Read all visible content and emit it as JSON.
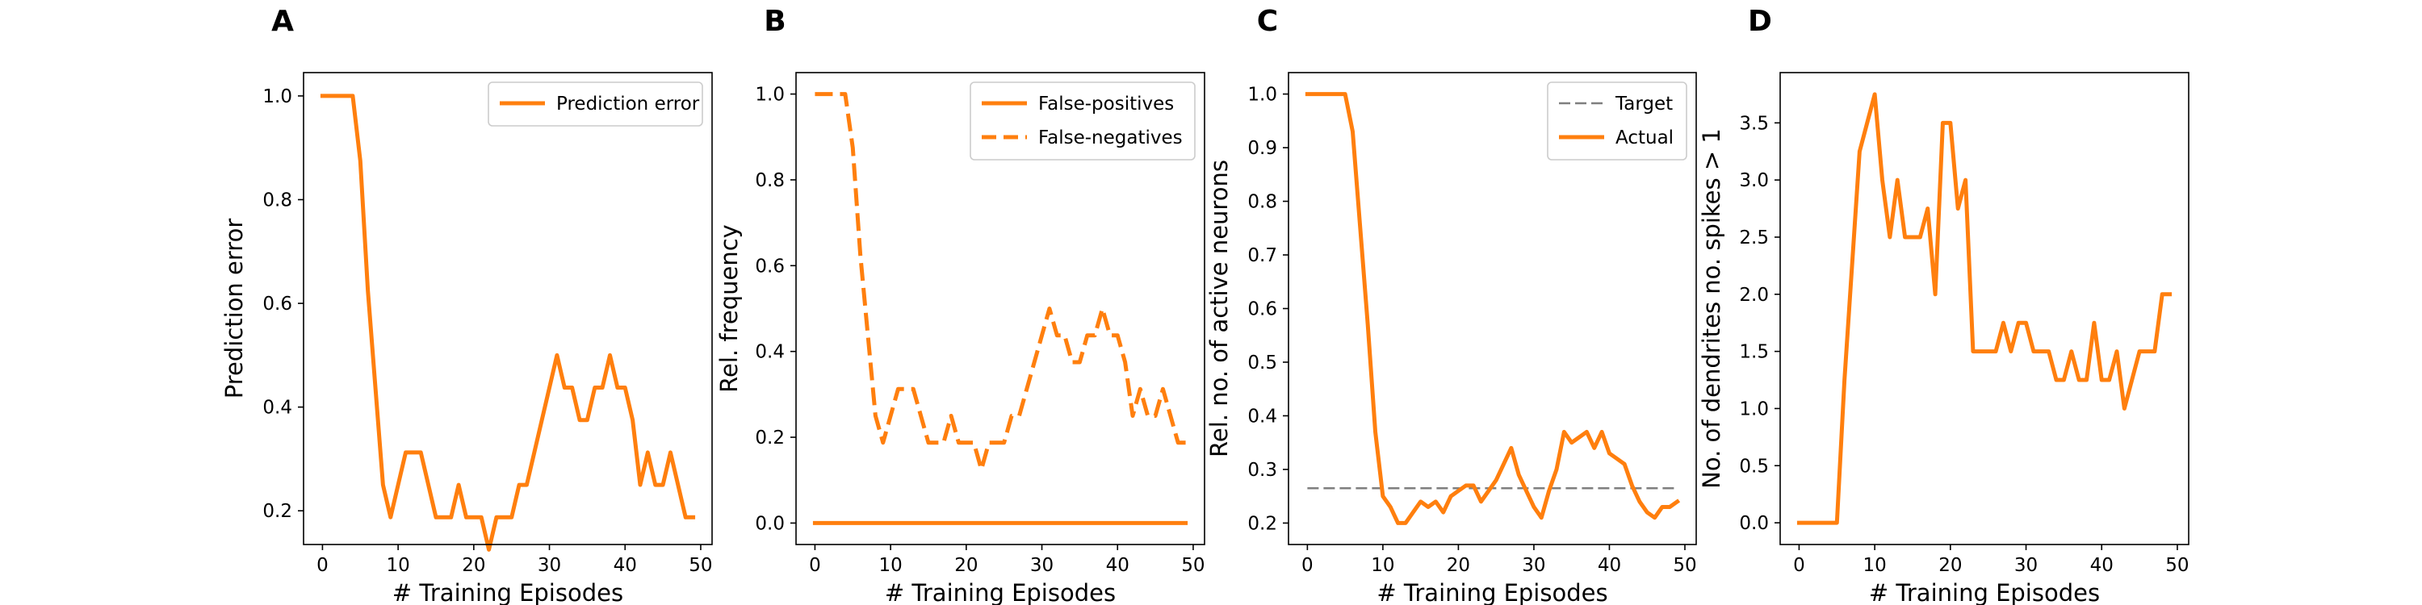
{
  "chart_data": [
    {
      "type": "line",
      "panel_label": "A",
      "xlabel": "# Training Episodes",
      "ylabel": "Prediction error",
      "xlim": [
        -2.5,
        51.5
      ],
      "ylim": [
        0.135,
        1.045
      ],
      "xticks": [
        0,
        10,
        20,
        30,
        40,
        50
      ],
      "yticks": [
        0.2,
        0.4,
        0.6,
        0.8,
        1.0
      ],
      "ytick_format": 1,
      "legend_position": "top-right",
      "grid": false,
      "series": [
        {
          "name": "Prediction error",
          "color": "#ff7f0e",
          "dash": "solid",
          "in_legend": true,
          "x": [
            0,
            1,
            2,
            3,
            4,
            5,
            6,
            7,
            8,
            9,
            10,
            11,
            12,
            13,
            14,
            15,
            16,
            17,
            18,
            19,
            20,
            21,
            22,
            23,
            24,
            25,
            26,
            27,
            28,
            29,
            30,
            31,
            32,
            33,
            34,
            35,
            36,
            37,
            38,
            39,
            40,
            41,
            42,
            43,
            44,
            45,
            46,
            47,
            48,
            49
          ],
          "y": [
            1.0,
            1.0,
            1.0,
            1.0,
            1.0,
            0.875,
            0.625,
            0.4375,
            0.25,
            0.1875,
            0.25,
            0.3125,
            0.3125,
            0.3125,
            0.25,
            0.1875,
            0.1875,
            0.1875,
            0.25,
            0.1875,
            0.1875,
            0.1875,
            0.125,
            0.1875,
            0.1875,
            0.1875,
            0.25,
            0.25,
            0.3125,
            0.375,
            0.4375,
            0.5,
            0.4375,
            0.4375,
            0.375,
            0.375,
            0.4375,
            0.4375,
            0.5,
            0.4375,
            0.4375,
            0.375,
            0.25,
            0.3125,
            0.25,
            0.25,
            0.3125,
            0.25,
            0.1875,
            0.1875
          ]
        }
      ]
    },
    {
      "type": "line",
      "panel_label": "B",
      "xlabel": "# Training Episodes",
      "ylabel": "Rel. frequency",
      "xlim": [
        -2.5,
        51.5
      ],
      "ylim": [
        -0.05,
        1.05
      ],
      "xticks": [
        0,
        10,
        20,
        30,
        40,
        50
      ],
      "yticks": [
        0.0,
        0.2,
        0.4,
        0.6,
        0.8,
        1.0
      ],
      "ytick_format": 1,
      "legend_position": "top-right",
      "grid": false,
      "series": [
        {
          "name": "False-positives",
          "color": "#ff7f0e",
          "dash": "solid",
          "in_legend": true,
          "x": [
            0,
            1,
            2,
            3,
            4,
            5,
            6,
            7,
            8,
            9,
            10,
            11,
            12,
            13,
            14,
            15,
            16,
            17,
            18,
            19,
            20,
            21,
            22,
            23,
            24,
            25,
            26,
            27,
            28,
            29,
            30,
            31,
            32,
            33,
            34,
            35,
            36,
            37,
            38,
            39,
            40,
            41,
            42,
            43,
            44,
            45,
            46,
            47,
            48,
            49
          ],
          "y": [
            0,
            0,
            0,
            0,
            0,
            0,
            0,
            0,
            0,
            0,
            0,
            0,
            0,
            0,
            0,
            0,
            0,
            0,
            0,
            0,
            0,
            0,
            0,
            0,
            0,
            0,
            0,
            0,
            0,
            0,
            0,
            0,
            0,
            0,
            0,
            0,
            0,
            0,
            0,
            0,
            0,
            0,
            0,
            0,
            0,
            0,
            0,
            0,
            0,
            0
          ]
        },
        {
          "name": "False-negatives",
          "color": "#ff7f0e",
          "dash": "dashed",
          "in_legend": true,
          "x": [
            0,
            1,
            2,
            3,
            4,
            5,
            6,
            7,
            8,
            9,
            10,
            11,
            12,
            13,
            14,
            15,
            16,
            17,
            18,
            19,
            20,
            21,
            22,
            23,
            24,
            25,
            26,
            27,
            28,
            29,
            30,
            31,
            32,
            33,
            34,
            35,
            36,
            37,
            38,
            39,
            40,
            41,
            42,
            43,
            44,
            45,
            46,
            47,
            48,
            49
          ],
          "y": [
            1.0,
            1.0,
            1.0,
            1.0,
            1.0,
            0.875,
            0.625,
            0.4375,
            0.25,
            0.1875,
            0.25,
            0.3125,
            0.3125,
            0.3125,
            0.25,
            0.1875,
            0.1875,
            0.1875,
            0.25,
            0.1875,
            0.1875,
            0.1875,
            0.125,
            0.1875,
            0.1875,
            0.1875,
            0.25,
            0.25,
            0.3125,
            0.375,
            0.4375,
            0.5,
            0.4375,
            0.4375,
            0.375,
            0.375,
            0.4375,
            0.4375,
            0.5,
            0.4375,
            0.4375,
            0.375,
            0.25,
            0.3125,
            0.25,
            0.25,
            0.3125,
            0.25,
            0.1875,
            0.1875
          ]
        }
      ]
    },
    {
      "type": "line",
      "panel_label": "C",
      "xlabel": "# Training Episodes",
      "ylabel": "Rel. no. of active neurons",
      "xlim": [
        -2.5,
        51.5
      ],
      "ylim": [
        0.16,
        1.04
      ],
      "xticks": [
        0,
        10,
        20,
        30,
        40,
        50
      ],
      "yticks": [
        0.2,
        0.3,
        0.4,
        0.5,
        0.6,
        0.7,
        0.8,
        0.9,
        1.0
      ],
      "ytick_format": 1,
      "legend_position": "top-right",
      "grid": false,
      "series": [
        {
          "name": "Target",
          "color": "#7f7f7f",
          "dash": "dashed",
          "in_legend": true,
          "x": [
            0,
            49
          ],
          "y": [
            0.265,
            0.265
          ]
        },
        {
          "name": "Actual",
          "color": "#ff7f0e",
          "dash": "solid",
          "in_legend": true,
          "x": [
            0,
            1,
            2,
            3,
            4,
            5,
            6,
            7,
            8,
            9,
            10,
            11,
            12,
            13,
            14,
            15,
            16,
            17,
            18,
            19,
            20,
            21,
            22,
            23,
            24,
            25,
            26,
            27,
            28,
            29,
            30,
            31,
            32,
            33,
            34,
            35,
            36,
            37,
            38,
            39,
            40,
            41,
            42,
            43,
            44,
            45,
            46,
            47,
            48,
            49
          ],
          "y": [
            1.0,
            1.0,
            1.0,
            1.0,
            1.0,
            1.0,
            0.93,
            0.75,
            0.57,
            0.37,
            0.25,
            0.23,
            0.2,
            0.2,
            0.22,
            0.24,
            0.23,
            0.24,
            0.22,
            0.25,
            0.26,
            0.27,
            0.27,
            0.24,
            0.26,
            0.28,
            0.31,
            0.34,
            0.29,
            0.26,
            0.23,
            0.21,
            0.26,
            0.3,
            0.37,
            0.35,
            0.36,
            0.37,
            0.34,
            0.37,
            0.33,
            0.32,
            0.31,
            0.27,
            0.24,
            0.22,
            0.21,
            0.23,
            0.23,
            0.24
          ]
        }
      ]
    },
    {
      "type": "line",
      "panel_label": "D",
      "xlabel": "# Training Episodes",
      "ylabel": "No. of dendrites no. spikes > 1",
      "xlim": [
        -2.5,
        51.5
      ],
      "ylim": [
        -0.19,
        3.94
      ],
      "xticks": [
        0,
        10,
        20,
        30,
        40,
        50
      ],
      "yticks": [
        0.0,
        0.5,
        1.0,
        1.5,
        2.0,
        2.5,
        3.0,
        3.5
      ],
      "ytick_format": 1,
      "legend_position": "none",
      "grid": false,
      "series": [
        {
          "name": "",
          "color": "#ff7f0e",
          "dash": "solid",
          "in_legend": false,
          "x": [
            0,
            1,
            2,
            3,
            4,
            5,
            6,
            7,
            8,
            9,
            10,
            11,
            12,
            13,
            14,
            15,
            16,
            17,
            18,
            19,
            20,
            21,
            22,
            23,
            24,
            25,
            26,
            27,
            28,
            29,
            30,
            31,
            32,
            33,
            34,
            35,
            36,
            37,
            38,
            39,
            40,
            41,
            42,
            43,
            44,
            45,
            46,
            47,
            48,
            49
          ],
          "y": [
            0,
            0,
            0,
            0,
            0,
            0,
            1.25,
            2.25,
            3.25,
            3.5,
            3.75,
            3.0,
            2.5,
            3.0,
            2.5,
            2.5,
            2.5,
            2.75,
            2.0,
            3.5,
            3.5,
            2.75,
            3.0,
            1.5,
            1.5,
            1.5,
            1.5,
            1.75,
            1.5,
            1.75,
            1.75,
            1.5,
            1.5,
            1.5,
            1.25,
            1.25,
            1.5,
            1.25,
            1.25,
            1.75,
            1.25,
            1.25,
            1.5,
            1.0,
            1.25,
            1.5,
            1.5,
            1.5,
            2.0,
            2.0
          ]
        }
      ]
    }
  ]
}
